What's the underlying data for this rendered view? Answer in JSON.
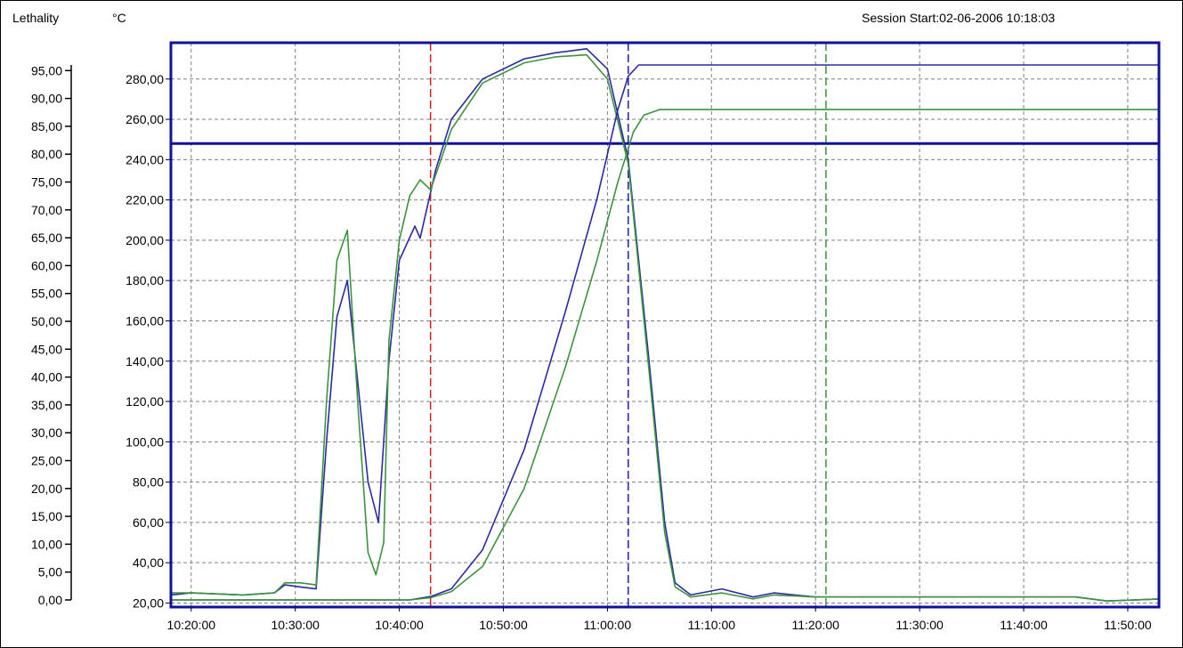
{
  "header": {
    "lethality_label": "Lethality",
    "temp_label": "°C",
    "session_start": "Session Start:02-06-2006 10:18:03"
  },
  "colors": {
    "axis_frame": "#1010a0",
    "series_blue": "#2a2aa8",
    "series_green": "#3c943c",
    "marker_red": "#d02020",
    "marker_blue": "#2020b0",
    "marker_green": "#3c943c",
    "grid": "#808080"
  },
  "chart_data": {
    "type": "line",
    "x_unit": "time (HH:MM:SS)",
    "x_ticks": [
      "10:20:00",
      "10:30:00",
      "10:40:00",
      "10:50:00",
      "11:00:00",
      "11:10:00",
      "11:20:00",
      "11:30:00",
      "11:40:00",
      "11:50:00"
    ],
    "xlim": [
      "10:18:03",
      "11:53:00"
    ],
    "lethality_axis": {
      "label": "Lethality",
      "ticks": [
        "0,00",
        "5,00",
        "10,00",
        "15,00",
        "20,00",
        "25,00",
        "30,00",
        "35,00",
        "40,00",
        "45,00",
        "50,00",
        "55,00",
        "60,00",
        "65,00",
        "70,00",
        "75,00",
        "80,00",
        "85,00",
        "90,00",
        "95,00"
      ],
      "ylim": [
        0,
        100
      ]
    },
    "temperature_axis": {
      "label": "°C",
      "ticks": [
        "20,00",
        "40,00",
        "60,00",
        "80,00",
        "100,00",
        "120,00",
        "140,00",
        "160,00",
        "180,00",
        "200,00",
        "220,00",
        "240,00",
        "260,00",
        "280,00"
      ],
      "ylim": [
        18,
        298
      ]
    },
    "grid": true,
    "threshold_line": {
      "axis": "temperature",
      "value": 248
    },
    "markers": [
      {
        "time": "10:43:00",
        "color": "red"
      },
      {
        "time": "11:02:00",
        "color": "blue"
      },
      {
        "time": "11:21:00",
        "color": "green"
      }
    ],
    "series": [
      {
        "color": "blue",
        "axis": "temperature",
        "points": [
          [
            "10:18:03",
            24
          ],
          [
            "10:20:00",
            25
          ],
          [
            "10:25:00",
            24
          ],
          [
            "10:28:00",
            25
          ],
          [
            "10:29:00",
            29
          ],
          [
            "10:30:30",
            28
          ],
          [
            "10:32:00",
            27
          ],
          [
            "10:33:00",
            100
          ],
          [
            "10:34:00",
            162
          ],
          [
            "10:35:00",
            180
          ],
          [
            "10:36:00",
            130
          ],
          [
            "10:37:00",
            80
          ],
          [
            "10:38:00",
            60
          ],
          [
            "10:39:00",
            140
          ],
          [
            "10:40:00",
            190
          ],
          [
            "10:41:30",
            207
          ],
          [
            "10:42:00",
            201
          ],
          [
            "10:43:30",
            235
          ],
          [
            "10:45:00",
            260
          ],
          [
            "10:48:00",
            280
          ],
          [
            "10:52:00",
            290
          ],
          [
            "10:55:00",
            293
          ],
          [
            "10:58:00",
            295
          ],
          [
            "11:00:00",
            285
          ],
          [
            "11:02:00",
            240
          ],
          [
            "11:04:00",
            140
          ],
          [
            "11:05:30",
            60
          ],
          [
            "11:06:30",
            30
          ],
          [
            "11:08:00",
            24
          ],
          [
            "11:11:00",
            27
          ],
          [
            "11:14:00",
            23
          ],
          [
            "11:16:00",
            25
          ],
          [
            "11:20:00",
            23
          ],
          [
            "11:30:00",
            23
          ],
          [
            "11:45:00",
            23
          ],
          [
            "11:48:00",
            21
          ],
          [
            "11:53:00",
            22
          ]
        ]
      },
      {
        "color": "green",
        "axis": "temperature",
        "points": [
          [
            "10:18:03",
            25
          ],
          [
            "10:20:00",
            25
          ],
          [
            "10:25:00",
            24
          ],
          [
            "10:28:00",
            25
          ],
          [
            "10:29:00",
            30
          ],
          [
            "10:30:30",
            30
          ],
          [
            "10:32:00",
            29
          ],
          [
            "10:33:00",
            120
          ],
          [
            "10:34:00",
            190
          ],
          [
            "10:35:00",
            205
          ],
          [
            "10:36:00",
            120
          ],
          [
            "10:37:00",
            45
          ],
          [
            "10:37:45",
            34
          ],
          [
            "10:38:30",
            50
          ],
          [
            "10:39:00",
            150
          ],
          [
            "10:40:00",
            200
          ],
          [
            "10:41:00",
            222
          ],
          [
            "10:42:00",
            230
          ],
          [
            "10:43:00",
            225
          ],
          [
            "10:45:00",
            255
          ],
          [
            "10:48:00",
            278
          ],
          [
            "10:52:00",
            288
          ],
          [
            "10:55:00",
            291
          ],
          [
            "10:58:00",
            292
          ],
          [
            "11:00:00",
            280
          ],
          [
            "11:02:00",
            238
          ],
          [
            "11:04:00",
            135
          ],
          [
            "11:05:30",
            55
          ],
          [
            "11:06:30",
            28
          ],
          [
            "11:08:00",
            23
          ],
          [
            "11:11:00",
            25
          ],
          [
            "11:14:00",
            22
          ],
          [
            "11:16:00",
            24
          ],
          [
            "11:20:00",
            23
          ],
          [
            "11:30:00",
            23
          ],
          [
            "11:45:00",
            23
          ],
          [
            "11:48:00",
            21
          ],
          [
            "11:53:00",
            22
          ]
        ]
      },
      {
        "color": "blue",
        "axis": "lethality",
        "points": [
          [
            "10:18:03",
            0
          ],
          [
            "10:41:00",
            0
          ],
          [
            "10:43:00",
            0.6
          ],
          [
            "10:45:00",
            2
          ],
          [
            "10:48:00",
            9
          ],
          [
            "10:52:00",
            27
          ],
          [
            "10:56:00",
            52
          ],
          [
            "10:59:00",
            72
          ],
          [
            "11:00:00",
            80
          ],
          [
            "11:01:00",
            88
          ],
          [
            "11:02:00",
            94
          ],
          [
            "11:03:00",
            96
          ],
          [
            "11:53:00",
            96
          ]
        ]
      },
      {
        "color": "green",
        "axis": "lethality",
        "points": [
          [
            "10:18:03",
            0
          ],
          [
            "10:41:00",
            0
          ],
          [
            "10:43:00",
            0.4
          ],
          [
            "10:45:00",
            1.5
          ],
          [
            "10:48:00",
            6
          ],
          [
            "10:52:00",
            20
          ],
          [
            "10:56:00",
            42
          ],
          [
            "10:59:00",
            61
          ],
          [
            "11:01:00",
            75
          ],
          [
            "11:02:30",
            84
          ],
          [
            "11:03:30",
            87
          ],
          [
            "11:05:00",
            88
          ],
          [
            "11:53:00",
            88
          ]
        ]
      }
    ]
  }
}
